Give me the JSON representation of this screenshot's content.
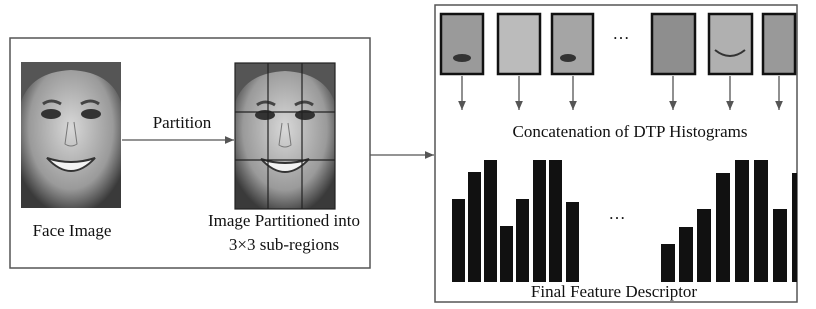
{
  "left_panel": {
    "face_label": "Face Image",
    "arrow_label": "Partition",
    "partitioned_label": [
      "Image Partitioned into",
      "3×3 sub-regions"
    ]
  },
  "right_panel": {
    "patch_ellipsis": "…",
    "concat_label": "Concatenation of DTP Histograms",
    "hist_ellipsis": "…",
    "descriptor_label": "Final Feature Descriptor"
  }
}
